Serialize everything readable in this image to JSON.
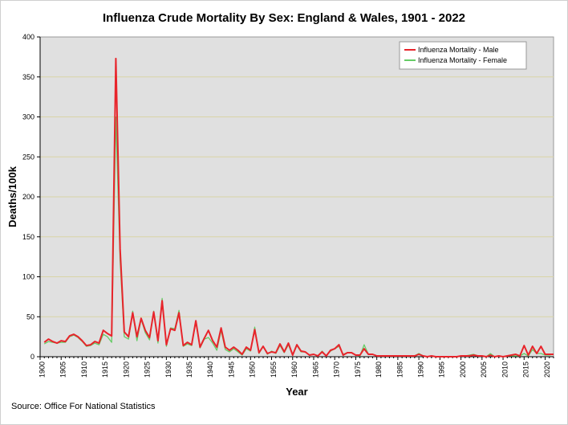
{
  "chart_data": {
    "type": "line",
    "title": "Influenza Crude Mortality By Sex: England & Wales, 1901 - 2022",
    "xlabel": "Year",
    "ylabel": "Deaths/100k",
    "source": "Source: Office For National Statistics",
    "xlim": [
      1900,
      2022
    ],
    "ylim": [
      0,
      400
    ],
    "y_ticks": [
      0,
      50,
      100,
      150,
      200,
      250,
      300,
      350,
      400
    ],
    "x_ticks": [
      1900,
      1905,
      1910,
      1915,
      1920,
      1925,
      1930,
      1935,
      1940,
      1945,
      1950,
      1955,
      1960,
      1965,
      1970,
      1975,
      1980,
      1985,
      1990,
      1995,
      2000,
      2005,
      2010,
      2015,
      2020
    ],
    "grid": "horizontal",
    "legend_position": "top-right",
    "x_start": 1901,
    "series": [
      {
        "name": "Influenza Mortality - Male",
        "color": "#e8242b",
        "values": [
          18,
          22,
          19,
          17,
          20,
          19,
          26,
          28,
          25,
          20,
          14,
          15,
          19,
          17,
          33,
          29,
          26,
          373,
          135,
          31,
          25,
          55,
          25,
          48,
          33,
          24,
          56,
          20,
          70,
          15,
          35,
          33,
          55,
          14,
          18,
          15,
          45,
          12,
          23,
          33,
          20,
          12,
          36,
          12,
          8,
          12,
          8,
          3,
          12,
          8,
          34,
          5,
          13,
          4,
          6,
          5,
          16,
          6,
          17,
          2,
          15,
          7,
          6,
          2,
          3,
          1,
          6,
          1,
          8,
          10,
          15,
          2,
          5,
          5,
          2,
          2,
          10,
          3,
          3,
          1,
          1,
          1,
          1,
          1,
          1,
          1,
          1,
          1,
          1,
          3,
          1,
          0,
          1,
          0,
          0,
          0,
          0,
          0,
          0,
          1,
          1,
          1,
          2,
          1,
          1,
          0,
          2,
          0,
          1,
          0,
          1,
          2,
          3,
          1,
          14,
          2,
          13,
          4,
          13,
          3,
          3,
          3
        ]
      },
      {
        "name": "Influenza Mortality - Female",
        "color": "#66cc66",
        "values": [
          16,
          19,
          18,
          17,
          18,
          18,
          25,
          27,
          24,
          19,
          13,
          14,
          17,
          15,
          28,
          25,
          18,
          300,
          120,
          25,
          22,
          57,
          20,
          47,
          30,
          21,
          57,
          17,
          73,
          13,
          36,
          35,
          58,
          13,
          16,
          14,
          44,
          11,
          22,
          24,
          17,
          8,
          33,
          9,
          6,
          10,
          6,
          2,
          10,
          7,
          37,
          4,
          13,
          3,
          7,
          4,
          14,
          5,
          15,
          2,
          14,
          6,
          6,
          2,
          3,
          1,
          7,
          1,
          7,
          10,
          13,
          3,
          5,
          5,
          2,
          1,
          15,
          3,
          3,
          1,
          1,
          1,
          1,
          1,
          1,
          1,
          1,
          1,
          1,
          4,
          1,
          0,
          1,
          0,
          0,
          0,
          0,
          0,
          0,
          1,
          1,
          2,
          3,
          1,
          1,
          0,
          4,
          0,
          1,
          0,
          1,
          1,
          1,
          1,
          4,
          1,
          9,
          4,
          4,
          2,
          2,
          3
        ]
      }
    ]
  }
}
